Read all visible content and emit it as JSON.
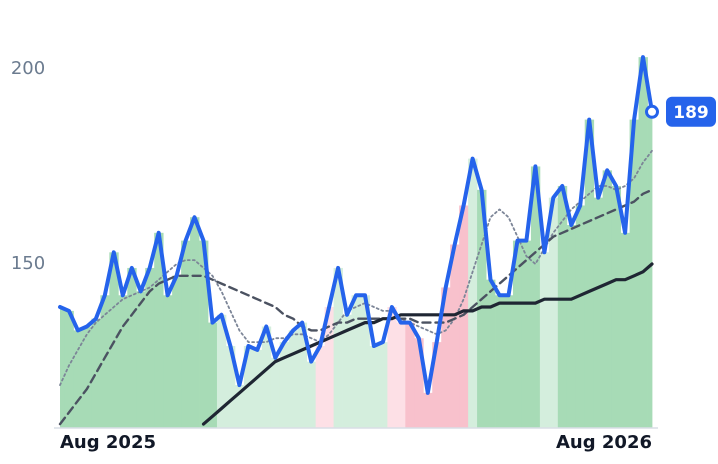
{
  "chart_data": {
    "type": "line",
    "categories": [
      "Aug 2025",
      null,
      null,
      null,
      null,
      null,
      null,
      null,
      null,
      null,
      null,
      null,
      null,
      null,
      null,
      null,
      null,
      null,
      null,
      null,
      null,
      null,
      null,
      null,
      null,
      null,
      null,
      null,
      null,
      null,
      null,
      null,
      null,
      null,
      null,
      null,
      null,
      null,
      null,
      null,
      null,
      null,
      null,
      null,
      null,
      null,
      null,
      null,
      null,
      null,
      null,
      null,
      null,
      null,
      null,
      null,
      null,
      null,
      null,
      null,
      null,
      null,
      null,
      null,
      null,
      null,
      "Aug 2026"
    ],
    "series": [
      {
        "color": "#2563eb",
        "values": [
          139,
          138,
          133,
          134,
          136,
          142,
          153,
          142,
          149,
          143,
          149,
          158,
          142,
          147,
          156,
          162,
          156,
          135,
          137,
          129,
          119,
          129,
          128,
          134,
          126,
          130,
          133,
          135,
          125,
          129,
          139,
          149,
          137,
          142,
          142,
          129,
          130,
          139,
          135,
          135,
          131,
          117,
          130,
          144,
          155,
          165,
          177,
          169,
          146,
          142,
          142,
          156,
          156,
          175,
          153,
          167,
          170,
          160,
          165,
          187,
          167,
          174,
          170,
          158,
          187,
          203,
          189
        ]
      },
      {
        "color": "#7c8597",
        "values": [
          119,
          124,
          128,
          132,
          135,
          137,
          139,
          141,
          142,
          143,
          144,
          146,
          148,
          150,
          151,
          151,
          149,
          147,
          143,
          138,
          133,
          130,
          130,
          130,
          131,
          131,
          132,
          132,
          131,
          130,
          132,
          135,
          138,
          139,
          140,
          139,
          138,
          138,
          136,
          135,
          134,
          133,
          132,
          133,
          136,
          141,
          148,
          155,
          162,
          164,
          162,
          157,
          152,
          150,
          154,
          158,
          161,
          164,
          166,
          168,
          170,
          170,
          169,
          170,
          172,
          176,
          179
        ]
      },
      {
        "color": "#4b5261",
        "values": [
          109,
          112,
          115,
          118,
          122,
          126,
          130,
          134,
          137,
          140,
          143,
          145,
          146,
          147,
          147,
          147,
          147,
          146,
          145,
          144,
          143,
          142,
          141,
          140,
          139,
          137,
          136,
          134,
          133,
          133,
          134,
          135,
          135,
          136,
          136,
          136,
          136,
          136,
          136,
          136,
          135,
          135,
          135,
          135,
          136,
          137,
          139,
          141,
          143,
          145,
          147,
          149,
          151,
          153,
          155,
          157,
          158,
          159,
          160,
          161,
          162,
          163,
          164,
          165,
          166,
          168,
          169
        ]
      },
      {
        "color": "#1f2633",
        "values": [
          null,
          null,
          null,
          null,
          null,
          null,
          null,
          null,
          null,
          null,
          null,
          null,
          null,
          null,
          null,
          null,
          109,
          111,
          113,
          115,
          117,
          119,
          121,
          123,
          125,
          126,
          127,
          128,
          129,
          130,
          131,
          132,
          133,
          134,
          135,
          135,
          136,
          136,
          137,
          137,
          137,
          137,
          137,
          137,
          137,
          138,
          138,
          139,
          139,
          140,
          140,
          140,
          140,
          140,
          141,
          141,
          141,
          141,
          142,
          143,
          144,
          145,
          146,
          146,
          147,
          148,
          150
        ]
      }
    ],
    "bar_colors": [
      "#a7dbb6",
      "#a7dbb6",
      "#a7dbb6",
      "#a7dbb6",
      "#a7dbb6",
      "#a7dbb6",
      "#a7dbb6",
      "#a7dbb6",
      "#a7dbb6",
      "#a7dbb6",
      "#a7dbb6",
      "#a7dbb6",
      "#a7dbb6",
      "#a7dbb6",
      "#a7dbb6",
      "#a7dbb6",
      "#a7dbb6",
      "#a7dbb6",
      "#d4eedd",
      "#d4eedd",
      "#d4eedd",
      "#d4eedd",
      "#d4eedd",
      "#d4eedd",
      "#d4eedd",
      "#d4eedd",
      "#d4eedd",
      "#d4eedd",
      "#d4eedd",
      "#fde0e6",
      "#fde0e6",
      "#d4eedd",
      "#d4eedd",
      "#d4eedd",
      "#d4eedd",
      "#d4eedd",
      "#d4eedd",
      "#fde0e6",
      "#fde0e6",
      "#f8c1cc",
      "#f8c1cc",
      "#f8c1cc",
      "#f8c1cc",
      "#f8c1cc",
      "#f8c1cc",
      "#f8c1cc",
      "#d4eedd",
      "#a7dbb6",
      "#a7dbb6",
      "#a7dbb6",
      "#a7dbb6",
      "#a7dbb6",
      "#a7dbb6",
      "#a7dbb6",
      "#d4eedd",
      "#d4eedd",
      "#a7dbb6",
      "#a7dbb6",
      "#a7dbb6",
      "#a7dbb6",
      "#a7dbb6",
      "#a7dbb6",
      "#a7dbb6",
      "#a7dbb6",
      "#a7dbb6",
      "#a7dbb6",
      "#a7dbb6"
    ],
    "dashes": [
      "",
      "2 3",
      "8 5",
      ""
    ],
    "widths": [
      4,
      1.8,
      2.4,
      3.2
    ],
    "ylim": [
      108,
      212
    ],
    "yticks": [
      150,
      200
    ]
  }
}
